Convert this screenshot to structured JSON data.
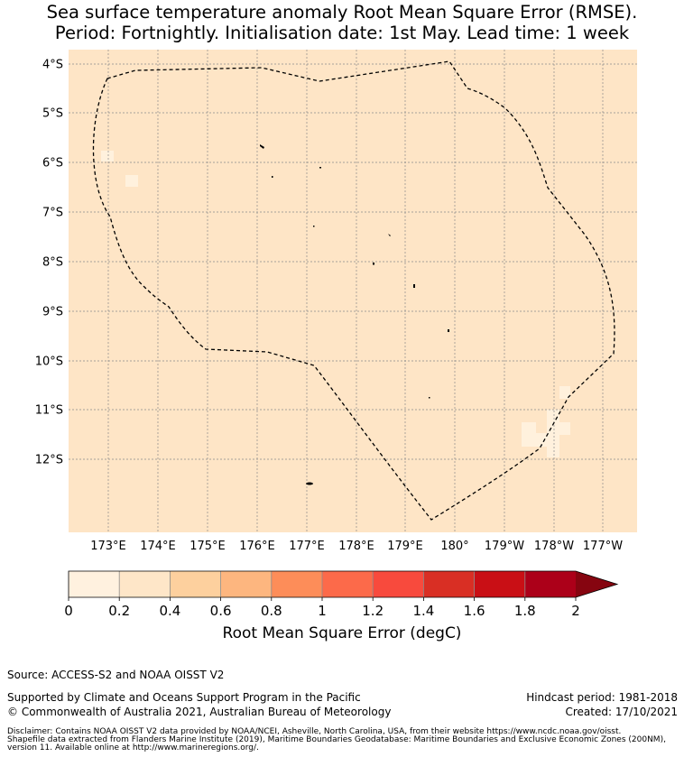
{
  "title": {
    "line1": "Sea surface temperature anomaly Root Mean Square Error (RMSE).",
    "line2": "Period: Fortnightly. Initialisation date: 1st May. Lead time: 1 week"
  },
  "map": {
    "lat_labels": [
      "4°S",
      "5°S",
      "6°S",
      "7°S",
      "8°S",
      "9°S",
      "10°S",
      "11°S",
      "12°S"
    ],
    "lon_labels": [
      "173°E",
      "174°E",
      "175°E",
      "176°E",
      "177°E",
      "178°E",
      "179°E",
      "180°",
      "179°W",
      "178°W",
      "177°W"
    ],
    "background_color": "#fee5c6",
    "low_cell_color": "#fff1dd",
    "boundary": "EEZ (dashed)"
  },
  "colorbar": {
    "ticks": [
      "0",
      "0.2",
      "0.4",
      "0.6",
      "0.8",
      "1",
      "1.2",
      "1.4",
      "1.6",
      "1.8",
      "2"
    ],
    "colors": [
      "#fff1df",
      "#fee6c8",
      "#fdd09e",
      "#fdb67f",
      "#fd8d59",
      "#fc6a4a",
      "#f84a3d",
      "#d92f24",
      "#c90f15",
      "#ac0019"
    ],
    "extend_color": "#860510",
    "label": "Root Mean Square Error (degC)"
  },
  "footer": {
    "source": "Source: ACCESS-S2 and NOAA OISST V2",
    "supported": "Supported by Climate and Oceans Support Program in the Pacific",
    "copyright": "© Commonwealth of Australia 2021, Australian Bureau of Meteorology",
    "hindcast": "Hindcast period: 1981-2018",
    "created": "Created: 17/10/2021",
    "disclaimer1": "Disclaimer: Contains NOAA OISST V2 data provided by NOAA/NCEI, Asheville, North Carolina, USA, from their website https://www.ncdc.noaa.gov/oisst.",
    "disclaimer2": "Shapefile data extracted from Flanders Marine Institute (2019), Maritime Boundaries Geodatabase: Maritime Boundaries and Exclusive Economic Zones (200NM),",
    "disclaimer3": "version 11. Available online at http://www.marineregions.org/."
  }
}
